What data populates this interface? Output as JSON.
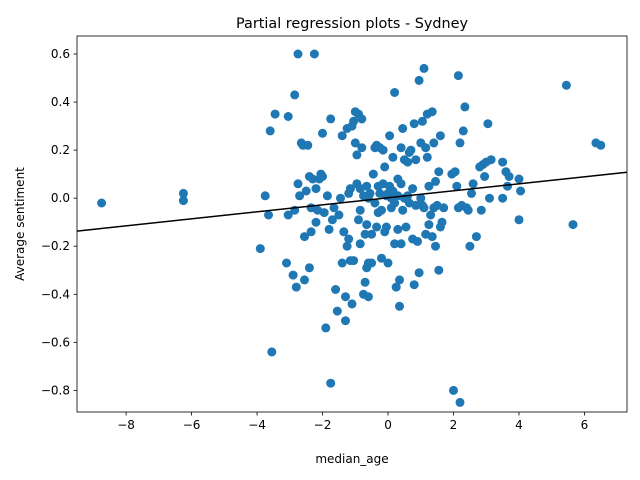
{
  "chart_data": {
    "type": "scatter",
    "title": "Partial regression plots - Sydney",
    "xlabel": "median_age",
    "ylabel": "Average sentiment",
    "xlim": [
      -9.5,
      7.3
    ],
    "ylim": [
      -0.89,
      0.675
    ],
    "xticks": [
      -8,
      -6,
      -4,
      -2,
      0,
      2,
      4,
      6
    ],
    "xtick_labels": [
      "−8",
      "−6",
      "−4",
      "−2",
      "0",
      "2",
      "4",
      "6"
    ],
    "yticks": [
      -0.8,
      -0.6,
      -0.4,
      -0.2,
      0.0,
      0.2,
      0.4,
      0.6
    ],
    "ytick_labels": [
      "−0.8",
      "−0.6",
      "−0.4",
      "−0.2",
      "0.0",
      "0.2",
      "0.4",
      "0.6"
    ],
    "grid": false,
    "point_color": "#1f77b4",
    "line_color": "#000000",
    "fit_line": {
      "x": [
        -9.5,
        7.3
      ],
      "y": [
        -0.137,
        0.108
      ]
    },
    "points": [
      [
        -8.75,
        -0.02
      ],
      [
        -6.25,
        0.02
      ],
      [
        -6.25,
        -0.01
      ],
      [
        -3.9,
        -0.21
      ],
      [
        -3.75,
        0.01
      ],
      [
        -3.65,
        -0.07
      ],
      [
        -3.6,
        0.28
      ],
      [
        -3.55,
        -0.64
      ],
      [
        -3.45,
        0.35
      ],
      [
        -3.1,
        -0.27
      ],
      [
        -3.05,
        0.34
      ],
      [
        -3.05,
        -0.07
      ],
      [
        -2.9,
        -0.32
      ],
      [
        -2.85,
        0.43
      ],
      [
        -2.85,
        -0.05
      ],
      [
        -2.8,
        -0.37
      ],
      [
        -2.75,
        0.06
      ],
      [
        -2.75,
        0.6
      ],
      [
        -2.7,
        0.01
      ],
      [
        -2.65,
        0.23
      ],
      [
        -2.6,
        0.22
      ],
      [
        -2.55,
        -0.16
      ],
      [
        -2.55,
        -0.34
      ],
      [
        -2.5,
        0.03
      ],
      [
        -2.45,
        0.22
      ],
      [
        -2.4,
        0.09
      ],
      [
        -2.4,
        -0.29
      ],
      [
        -2.35,
        -0.14
      ],
      [
        -2.35,
        -0.04
      ],
      [
        -2.3,
        0.08
      ],
      [
        -2.25,
        0.6
      ],
      [
        -2.2,
        0.04
      ],
      [
        -2.2,
        -0.1
      ],
      [
        -2.15,
        -0.05
      ],
      [
        -2.1,
        0.08
      ],
      [
        -2.05,
        0.1
      ],
      [
        -2.0,
        0.27
      ],
      [
        -2.0,
        0.09
      ],
      [
        -1.95,
        -0.06
      ],
      [
        -1.9,
        -0.54
      ],
      [
        -1.85,
        0.01
      ],
      [
        -1.8,
        -0.13
      ],
      [
        -1.75,
        0.33
      ],
      [
        -1.75,
        -0.77
      ],
      [
        -1.7,
        -0.09
      ],
      [
        -1.65,
        -0.04
      ],
      [
        -1.6,
        -0.38
      ],
      [
        -1.55,
        -0.47
      ],
      [
        -1.5,
        -0.07
      ],
      [
        -1.45,
        0.0
      ],
      [
        -1.4,
        0.26
      ],
      [
        -1.4,
        -0.27
      ],
      [
        -1.35,
        -0.14
      ],
      [
        -1.3,
        -0.51
      ],
      [
        -1.3,
        -0.41
      ],
      [
        -1.25,
        0.29
      ],
      [
        -1.25,
        -0.2
      ],
      [
        -1.2,
        0.02
      ],
      [
        -1.2,
        -0.17
      ],
      [
        -1.15,
        0.04
      ],
      [
        -1.15,
        -0.26
      ],
      [
        -1.1,
        0.3
      ],
      [
        -1.1,
        -0.44
      ],
      [
        -1.05,
        0.32
      ],
      [
        -1.05,
        -0.26
      ],
      [
        -1.0,
        0.36
      ],
      [
        -1.0,
        0.23
      ],
      [
        -0.95,
        0.18
      ],
      [
        -0.95,
        0.06
      ],
      [
        -0.9,
        0.35
      ],
      [
        -0.9,
        -0.09
      ],
      [
        -0.85,
        0.04
      ],
      [
        -0.85,
        -0.05
      ],
      [
        -0.85,
        -0.19
      ],
      [
        -0.8,
        0.33
      ],
      [
        -0.8,
        0.21
      ],
      [
        -0.75,
        0.01
      ],
      [
        -0.75,
        -0.4
      ],
      [
        -0.7,
        -0.35
      ],
      [
        -0.7,
        -0.15
      ],
      [
        -0.65,
        0.05
      ],
      [
        -0.65,
        -0.11
      ],
      [
        -0.65,
        -0.29
      ],
      [
        -0.6,
        0.0
      ],
      [
        -0.6,
        -0.27
      ],
      [
        -0.6,
        -0.41
      ],
      [
        -0.55,
        0.02
      ],
      [
        -0.5,
        -0.15
      ],
      [
        -0.5,
        -0.27
      ],
      [
        -0.45,
        0.1
      ],
      [
        -0.4,
        0.21
      ],
      [
        -0.4,
        -0.02
      ],
      [
        -0.35,
        0.22
      ],
      [
        -0.35,
        -0.12
      ],
      [
        -0.3,
        0.05
      ],
      [
        -0.3,
        -0.06
      ],
      [
        -0.25,
        0.21
      ],
      [
        -0.25,
        0.02
      ],
      [
        -0.2,
        -0.05
      ],
      [
        -0.2,
        -0.25
      ],
      [
        -0.15,
        0.2
      ],
      [
        -0.15,
        0.06
      ],
      [
        -0.1,
        0.13
      ],
      [
        -0.1,
        -0.14
      ],
      [
        -0.05,
        0.01
      ],
      [
        -0.05,
        -0.12
      ],
      [
        0.0,
        0.02
      ],
      [
        0.0,
        -0.27
      ],
      [
        0.05,
        0.26
      ],
      [
        0.05,
        0.05
      ],
      [
        0.1,
        0.0
      ],
      [
        0.1,
        -0.04
      ],
      [
        0.15,
        0.17
      ],
      [
        0.15,
        0.03
      ],
      [
        0.2,
        0.44
      ],
      [
        0.2,
        -0.02
      ],
      [
        0.2,
        -0.19
      ],
      [
        0.25,
        -0.37
      ],
      [
        0.3,
        0.08
      ],
      [
        0.3,
        0.01
      ],
      [
        0.3,
        -0.13
      ],
      [
        0.35,
        -0.34
      ],
      [
        0.35,
        -0.45
      ],
      [
        0.4,
        0.21
      ],
      [
        0.4,
        0.06
      ],
      [
        0.4,
        -0.19
      ],
      [
        0.45,
        0.29
      ],
      [
        0.45,
        -0.05
      ],
      [
        0.5,
        0.16
      ],
      [
        0.5,
        0.0
      ],
      [
        0.55,
        -0.12
      ],
      [
        0.6,
        0.15
      ],
      [
        0.6,
        0.01
      ],
      [
        0.65,
        0.19
      ],
      [
        0.65,
        -0.02
      ],
      [
        0.7,
        0.2
      ],
      [
        0.75,
        0.04
      ],
      [
        0.75,
        -0.17
      ],
      [
        0.8,
        0.31
      ],
      [
        0.8,
        -0.36
      ],
      [
        0.85,
        0.16
      ],
      [
        0.85,
        -0.03
      ],
      [
        0.9,
        -0.18
      ],
      [
        0.95,
        0.49
      ],
      [
        0.95,
        -0.31
      ],
      [
        1.0,
        0.23
      ],
      [
        1.0,
        0.0
      ],
      [
        1.05,
        0.32
      ],
      [
        1.05,
        -0.03
      ],
      [
        1.1,
        0.54
      ],
      [
        1.1,
        -0.04
      ],
      [
        1.15,
        0.21
      ],
      [
        1.15,
        -0.15
      ],
      [
        1.2,
        0.35
      ],
      [
        1.2,
        0.17
      ],
      [
        1.25,
        0.05
      ],
      [
        1.25,
        -0.11
      ],
      [
        1.3,
        -0.07
      ],
      [
        1.35,
        0.36
      ],
      [
        1.35,
        -0.16
      ],
      [
        1.4,
        0.23
      ],
      [
        1.4,
        -0.04
      ],
      [
        1.45,
        0.07
      ],
      [
        1.45,
        -0.2
      ],
      [
        1.5,
        -0.03
      ],
      [
        1.55,
        0.11
      ],
      [
        1.55,
        -0.3
      ],
      [
        1.6,
        0.26
      ],
      [
        1.6,
        -0.12
      ],
      [
        1.65,
        -0.1
      ],
      [
        1.7,
        -0.04
      ],
      [
        1.95,
        0.1
      ],
      [
        2.0,
        -0.8
      ],
      [
        2.05,
        0.11
      ],
      [
        2.1,
        0.05
      ],
      [
        2.15,
        0.51
      ],
      [
        2.15,
        -0.04
      ],
      [
        2.2,
        0.23
      ],
      [
        2.2,
        -0.85
      ],
      [
        2.25,
        -0.03
      ],
      [
        2.3,
        0.28
      ],
      [
        2.35,
        0.38
      ],
      [
        2.4,
        -0.04
      ],
      [
        2.45,
        -0.05
      ],
      [
        2.5,
        -0.2
      ],
      [
        2.55,
        0.02
      ],
      [
        2.6,
        0.06
      ],
      [
        2.7,
        -0.16
      ],
      [
        2.8,
        0.13
      ],
      [
        2.85,
        -0.05
      ],
      [
        2.9,
        0.14
      ],
      [
        2.95,
        0.09
      ],
      [
        3.0,
        0.15
      ],
      [
        3.05,
        0.31
      ],
      [
        3.1,
        0.0
      ],
      [
        3.15,
        0.16
      ],
      [
        3.5,
        0.15
      ],
      [
        3.5,
        0.0
      ],
      [
        3.6,
        0.11
      ],
      [
        3.65,
        0.05
      ],
      [
        3.7,
        0.09
      ],
      [
        4.0,
        0.08
      ],
      [
        4.0,
        -0.09
      ],
      [
        4.05,
        0.03
      ],
      [
        5.45,
        0.47
      ],
      [
        5.65,
        -0.11
      ],
      [
        6.35,
        0.23
      ],
      [
        6.5,
        0.22
      ]
    ]
  }
}
